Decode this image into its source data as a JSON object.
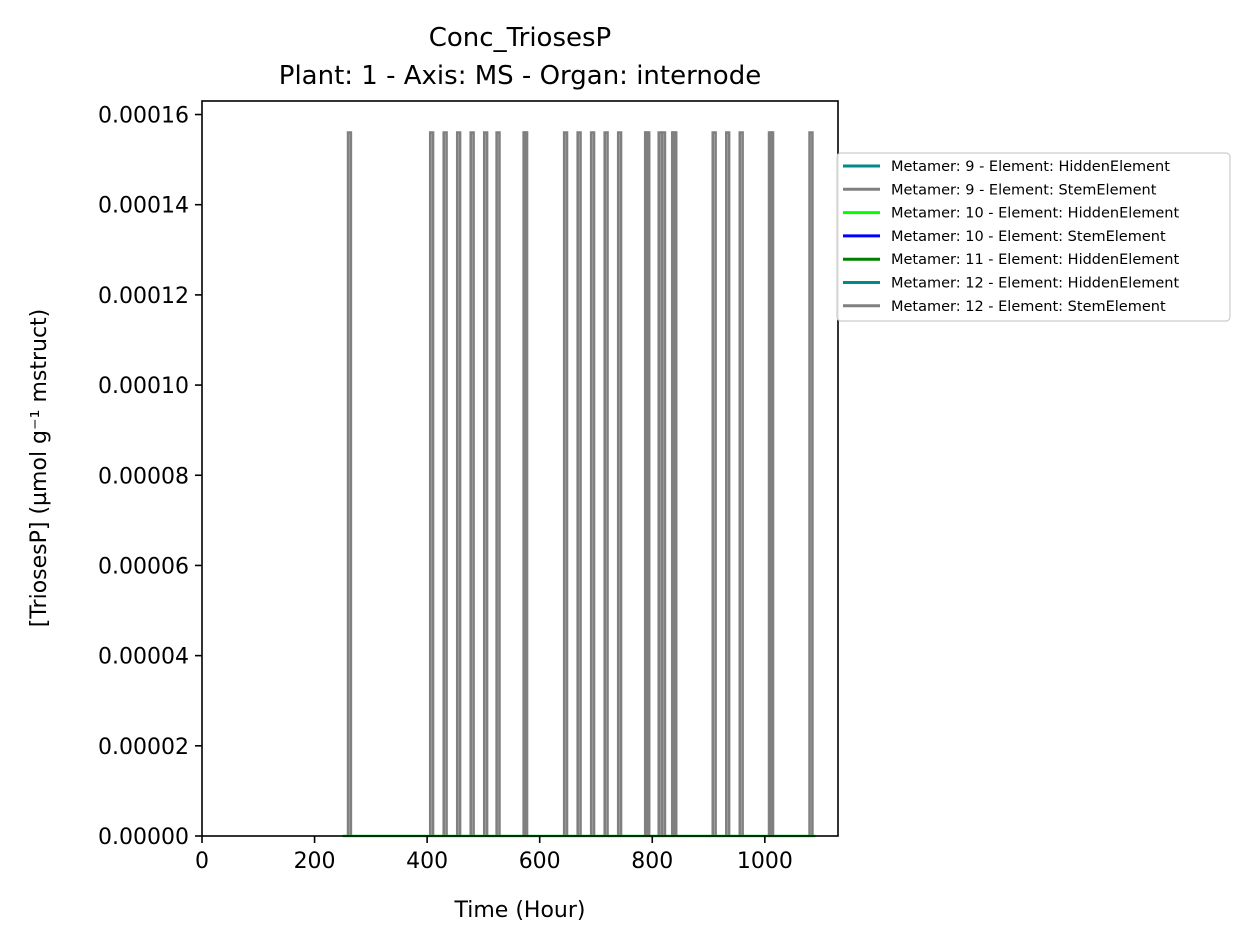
{
  "chart_data": {
    "type": "line",
    "title": "Conc_TriosesP",
    "subtitle": "Plant: 1 - Axis: MS - Organ: internode",
    "xlabel": "Time (Hour)",
    "ylabel": "[TriosesP] (µmol g⁻¹ mstruct)",
    "xlim": [
      0,
      1130
    ],
    "ylim": [
      0,
      0.000163
    ],
    "xticks": [
      0,
      200,
      400,
      600,
      800,
      1000
    ],
    "xtick_labels": [
      "0",
      "200",
      "400",
      "600",
      "800",
      "1000"
    ],
    "yticks": [
      0,
      2e-05,
      4e-05,
      6e-05,
      8e-05,
      0.0001,
      0.00012,
      0.00014,
      0.00016
    ],
    "ytick_labels": [
      "0.00000",
      "0.00002",
      "0.00004",
      "0.00006",
      "0.00008",
      "0.00010",
      "0.00012",
      "0.00014",
      "0.00016"
    ],
    "grid": false,
    "legend_position": "right-outside",
    "spike_value": 0.000156,
    "series": [
      {
        "name": "Metamer: 9 - Element: HiddenElement",
        "color": "#008b8b",
        "x_range": [
          250,
          1090
        ],
        "baseline": 0
      },
      {
        "name": "Metamer: 9 - Element: StemElement",
        "color": "#808080",
        "spikes": [
          262,
          408,
          432,
          456,
          480,
          504,
          526,
          574,
          646,
          670,
          694,
          718,
          742,
          790,
          814,
          838,
          910,
          934,
          958,
          1010,
          1082
        ]
      },
      {
        "name": "Metamer: 10 - Element: HiddenElement",
        "color": "#00ff00",
        "x_range": [
          250,
          1090
        ],
        "baseline": 0
      },
      {
        "name": "Metamer: 10 - Element: StemElement",
        "color": "#0000ff"
      },
      {
        "name": "Metamer: 11 - Element: HiddenElement",
        "color": "#008000"
      },
      {
        "name": "Metamer: 12 - Element: HiddenElement",
        "color": "#008b8b"
      },
      {
        "name": "Metamer: 12 - Element: StemElement",
        "color": "#808080",
        "spikes": [
          575,
          792,
          820,
          840,
          1012
        ]
      }
    ]
  }
}
